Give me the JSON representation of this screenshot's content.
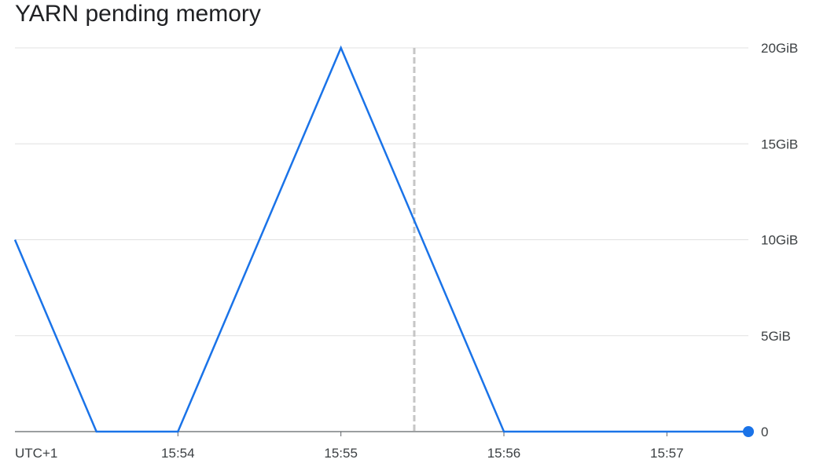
{
  "chart_data": {
    "type": "line",
    "title": "YARN pending memory",
    "timezone_label": "UTC+1",
    "x_tick_labels": [
      "15:54",
      "15:55",
      "15:56",
      "15:57"
    ],
    "y_tick_labels": [
      "0",
      "5GiB",
      "10GiB",
      "15GiB",
      "20GiB"
    ],
    "y_tick_values": [
      0,
      5,
      10,
      15,
      20
    ],
    "ylim": [
      0,
      20
    ],
    "y_unit": "GiB",
    "xlim": [
      "15:53:00",
      "15:57:30"
    ],
    "grid": true,
    "y_axis_position": "right",
    "series": [
      {
        "color": "#1a73e8",
        "x": [
          "15:53:00",
          "15:53:30",
          "15:54:00",
          "15:55:00",
          "15:56:00",
          "15:57:30"
        ],
        "values": [
          10,
          0,
          0,
          20,
          0,
          0
        ]
      }
    ],
    "cursor_time": "15:55:27",
    "last_point_marker": true,
    "colors": {
      "line": "#1a73e8",
      "grid": "#e0e0e0",
      "baseline": "#5f6368",
      "cursor": "#c6c6c6",
      "text": "#3c4043",
      "title": "#202124"
    }
  }
}
